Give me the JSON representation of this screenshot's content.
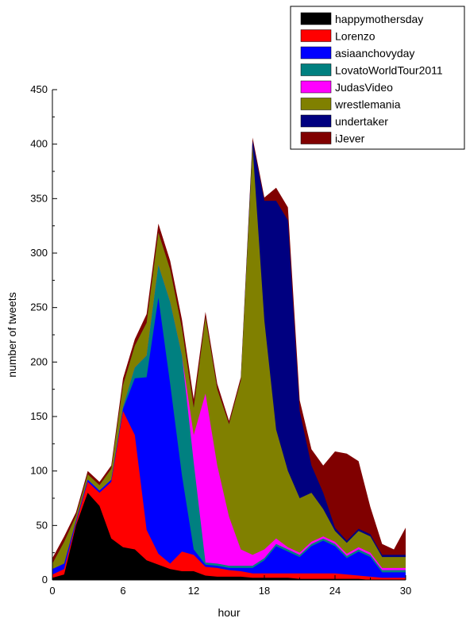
{
  "chart_data": {
    "type": "area",
    "stacked": true,
    "title": "",
    "xlabel": "hour",
    "ylabel": "number of tweets",
    "xlim": [
      0,
      30
    ],
    "ylim": [
      0,
      450
    ],
    "xticks": [
      0,
      6,
      12,
      18,
      24,
      30
    ],
    "yticks": [
      0,
      50,
      100,
      150,
      200,
      250,
      300,
      350,
      400,
      450
    ],
    "grid": false,
    "legend_position": "top-right",
    "x": [
      0,
      1,
      2,
      3,
      4,
      5,
      6,
      7,
      8,
      9,
      10,
      11,
      12,
      13,
      14,
      15,
      16,
      17,
      18,
      19,
      20,
      21,
      22,
      23,
      24,
      25,
      26,
      27,
      28,
      29,
      30
    ],
    "series": [
      {
        "name": "happymothersday",
        "color": "#000000",
        "values": [
          2,
          5,
          50,
          80,
          68,
          38,
          30,
          28,
          18,
          14,
          10,
          8,
          8,
          4,
          3,
          3,
          3,
          2,
          2,
          2,
          2,
          1,
          1,
          1,
          1,
          1,
          1,
          0,
          0,
          0,
          0
        ]
      },
      {
        "name": "Lorenzo",
        "color": "#ff0000",
        "values": [
          3,
          5,
          2,
          10,
          12,
          52,
          125,
          105,
          28,
          10,
          5,
          18,
          15,
          8,
          8,
          6,
          5,
          4,
          4,
          4,
          4,
          5,
          5,
          5,
          5,
          4,
          3,
          3,
          2,
          2,
          2
        ]
      },
      {
        "name": "asiaanchovyday",
        "color": "#0000ff",
        "values": [
          5,
          5,
          2,
          2,
          2,
          2,
          2,
          52,
          140,
          235,
          165,
          70,
          5,
          2,
          2,
          2,
          3,
          5,
          12,
          25,
          20,
          15,
          25,
          30,
          25,
          15,
          22,
          18,
          5,
          5,
          5
        ]
      },
      {
        "name": "LovatoWorldTour2011",
        "color": "#008080",
        "values": [
          0,
          0,
          0,
          0,
          0,
          0,
          2,
          10,
          20,
          30,
          75,
          110,
          80,
          2,
          2,
          2,
          2,
          2,
          2,
          2,
          2,
          2,
          2,
          2,
          2,
          2,
          2,
          2,
          2,
          2,
          2
        ]
      },
      {
        "name": "JudasVideo",
        "color": "#ff00ff",
        "values": [
          0,
          0,
          0,
          0,
          0,
          0,
          0,
          0,
          0,
          0,
          0,
          0,
          25,
          155,
          90,
          45,
          15,
          10,
          8,
          5,
          2,
          2,
          2,
          2,
          2,
          2,
          2,
          2,
          2,
          2,
          2
        ]
      },
      {
        "name": "wrestlemania",
        "color": "#808000",
        "values": [
          5,
          20,
          5,
          5,
          5,
          10,
          20,
          20,
          30,
          30,
          30,
          25,
          25,
          70,
          70,
          85,
          155,
          375,
          210,
          100,
          70,
          50,
          45,
          25,
          10,
          10,
          15,
          15,
          10,
          10,
          10
        ]
      },
      {
        "name": "undertaker",
        "color": "#000080",
        "values": [
          0,
          0,
          0,
          0,
          0,
          0,
          0,
          0,
          0,
          0,
          0,
          0,
          0,
          0,
          0,
          0,
          0,
          5,
          110,
          210,
          230,
          80,
          25,
          15,
          3,
          2,
          2,
          2,
          2,
          2,
          2
        ]
      },
      {
        "name": "iJever",
        "color": "#800000",
        "values": [
          5,
          5,
          3,
          3,
          3,
          3,
          6,
          6,
          8,
          8,
          8,
          8,
          8,
          5,
          5,
          3,
          3,
          3,
          3,
          12,
          12,
          10,
          15,
          25,
          70,
          80,
          62,
          25,
          10,
          5,
          25
        ]
      }
    ]
  }
}
